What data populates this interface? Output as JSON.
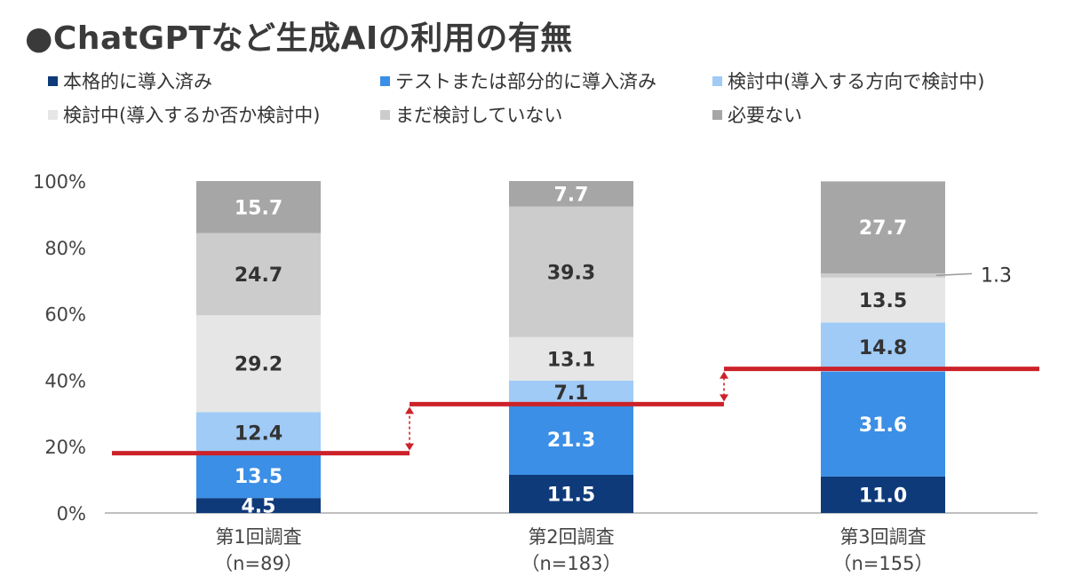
{
  "title": "●ChatGPTなど生成AIの利用の有無",
  "colors": {
    "introduced": "#0e3a7a",
    "partial": "#3b8fe6",
    "considering_direction": "#9fcbf6",
    "considering_whether": "#e6e6e6",
    "not_yet": "#cccccc",
    "not_needed": "#a6a6a6",
    "trend_line": "#cc2229",
    "axis": "#bfbfbf"
  },
  "chart_data": {
    "type": "bar",
    "stacked": true,
    "categories": [
      "第1回調査",
      "第2回調査",
      "第3回調査"
    ],
    "category_sublabels": [
      "（n=89）",
      "（n=183）",
      "（n=155）"
    ],
    "ylim": [
      0,
      100
    ],
    "yticks": [
      "0%",
      "20%",
      "40%",
      "60%",
      "80%",
      "100%"
    ],
    "grid": false,
    "legend_position": "top",
    "series": [
      {
        "name": "本格的に導入済み",
        "color_key": "introduced",
        "values": [
          4.5,
          11.5,
          11.0
        ],
        "label_color": "#ffffff"
      },
      {
        "name": "テストまたは部分的に導入済み",
        "color_key": "partial",
        "values": [
          13.5,
          21.3,
          31.6
        ],
        "label_color": "#ffffff"
      },
      {
        "name": "検討中(導入する方向で検討中)",
        "color_key": "considering_direction",
        "values": [
          12.4,
          7.1,
          14.8
        ],
        "label_color": "#333333"
      },
      {
        "name": "検討中(導入するか否か検討中)",
        "color_key": "considering_whether",
        "values": [
          29.2,
          13.1,
          13.5
        ],
        "label_color": "#333333"
      },
      {
        "name": "まだ検討していない",
        "color_key": "not_yet",
        "values": [
          24.7,
          39.3,
          1.3
        ],
        "label_color": "#333333"
      },
      {
        "name": "必要ない",
        "color_key": "not_needed",
        "values": [
          15.7,
          7.7,
          27.7
        ],
        "label_color": "#ffffff"
      }
    ],
    "value_labels": [
      [
        "4.5",
        "13.5",
        "12.4",
        "29.2",
        "24.7",
        "15.7"
      ],
      [
        "11.5",
        "21.3",
        "7.1",
        "13.1",
        "39.3",
        "7.7"
      ],
      [
        "11.0",
        "31.6",
        "14.8",
        "13.5",
        "1.3",
        "27.7"
      ]
    ],
    "trend_levels": [
      18.0,
      32.8,
      43.4
    ]
  }
}
